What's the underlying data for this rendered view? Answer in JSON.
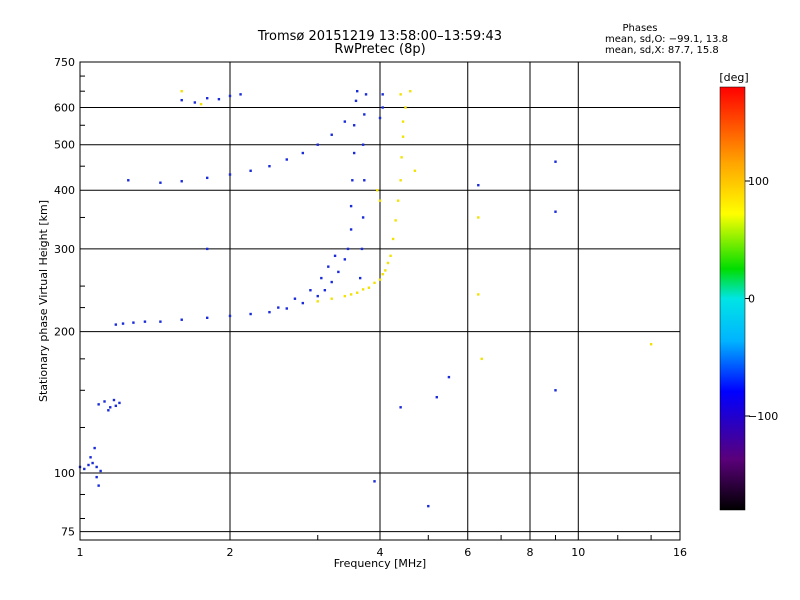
{
  "chart_data": {
    "type": "scatter",
    "title": "Tromsø 20151219 13:58:00–13:59:43",
    "subtitle": "RwPretec (8p)",
    "xlabel": "Frequency [MHz]",
    "ylabel": "Stationary phase Virtual Height [km]",
    "x_scale": "log",
    "y_scale": "log",
    "xlim": [
      1,
      16
    ],
    "ylim": [
      72,
      750
    ],
    "x_ticks": [
      1,
      2,
      4,
      6,
      8,
      10,
      16
    ],
    "x_tick_labels": [
      "1",
      "2",
      "4",
      "6",
      "8",
      "10",
      "16"
    ],
    "y_ticks": [
      75,
      100,
      200,
      300,
      400,
      500,
      600,
      750
    ],
    "y_tick_labels": [
      "75",
      "100",
      "200",
      "300",
      "400",
      "500",
      "600",
      "750"
    ],
    "grid": true,
    "phase_legend": {
      "title": "Phases",
      "line_o": "mean, sd,O: −99.1, 13.8",
      "line_x": "mean, sd,X:  87.7, 15.8"
    },
    "colorbar": {
      "label": "[deg]",
      "range": [
        -180,
        180
      ],
      "ticks": [
        100,
        0,
        -100
      ],
      "tick_labels": [
        "100",
        "0",
        "−100"
      ]
    },
    "series": [
      {
        "name": "O",
        "color": "#1a2bd9",
        "points": [
          [
            1.0,
            103
          ],
          [
            1.02,
            102
          ],
          [
            1.04,
            104
          ],
          [
            1.06,
            105
          ],
          [
            1.08,
            103
          ],
          [
            1.1,
            101
          ],
          [
            1.05,
            108
          ],
          [
            1.07,
            113
          ],
          [
            1.09,
            94
          ],
          [
            1.08,
            98
          ],
          [
            1.09,
            140
          ],
          [
            1.12,
            142
          ],
          [
            1.15,
            138
          ],
          [
            1.18,
            139
          ],
          [
            1.2,
            141
          ],
          [
            1.14,
            136
          ],
          [
            1.17,
            143
          ],
          [
            1.18,
            207
          ],
          [
            1.22,
            208
          ],
          [
            1.28,
            209
          ],
          [
            1.35,
            210
          ],
          [
            1.45,
            210
          ],
          [
            1.6,
            212
          ],
          [
            1.8,
            214
          ],
          [
            2.0,
            216
          ],
          [
            2.2,
            218
          ],
          [
            2.4,
            220
          ],
          [
            2.6,
            224
          ],
          [
            2.8,
            230
          ],
          [
            3.0,
            238
          ],
          [
            3.1,
            245
          ],
          [
            3.2,
            255
          ],
          [
            3.3,
            268
          ],
          [
            3.4,
            285
          ],
          [
            3.45,
            300
          ],
          [
            3.5,
            330
          ],
          [
            3.5,
            370
          ],
          [
            3.52,
            420
          ],
          [
            3.55,
            480
          ],
          [
            3.55,
            550
          ],
          [
            3.58,
            620
          ],
          [
            3.6,
            650
          ],
          [
            3.65,
            260
          ],
          [
            3.68,
            300
          ],
          [
            3.7,
            350
          ],
          [
            3.72,
            420
          ],
          [
            3.7,
            500
          ],
          [
            3.72,
            580
          ],
          [
            3.75,
            640
          ],
          [
            2.5,
            225
          ],
          [
            2.7,
            235
          ],
          [
            2.9,
            245
          ],
          [
            3.05,
            260
          ],
          [
            3.15,
            275
          ],
          [
            3.25,
            290
          ],
          [
            1.45,
            415
          ],
          [
            1.6,
            418
          ],
          [
            1.8,
            425
          ],
          [
            2.0,
            432
          ],
          [
            2.2,
            440
          ],
          [
            2.4,
            450
          ],
          [
            2.6,
            465
          ],
          [
            2.8,
            480
          ],
          [
            3.0,
            500
          ],
          [
            3.2,
            525
          ],
          [
            3.4,
            560
          ],
          [
            1.6,
            622
          ],
          [
            1.8,
            628
          ],
          [
            2.0,
            635
          ],
          [
            2.1,
            640
          ],
          [
            1.7,
            615
          ],
          [
            1.9,
            625
          ],
          [
            4.05,
            640
          ],
          [
            4.05,
            600
          ],
          [
            4.0,
            570
          ],
          [
            1.25,
            420
          ],
          [
            1.8,
            300
          ],
          [
            5.2,
            145
          ],
          [
            6.3,
            410
          ],
          [
            9.0,
            460
          ],
          [
            9.0,
            360
          ],
          [
            9.0,
            150
          ],
          [
            4.4,
            138
          ],
          [
            5.0,
            85
          ],
          [
            5.5,
            160
          ],
          [
            3.9,
            96
          ]
        ]
      },
      {
        "name": "X",
        "color": "#f2e200",
        "points": [
          [
            3.0,
            232
          ],
          [
            3.2,
            235
          ],
          [
            3.4,
            238
          ],
          [
            3.6,
            242
          ],
          [
            3.8,
            248
          ],
          [
            4.0,
            258
          ],
          [
            4.1,
            270
          ],
          [
            4.2,
            290
          ],
          [
            4.25,
            315
          ],
          [
            4.3,
            345
          ],
          [
            4.35,
            380
          ],
          [
            4.4,
            420
          ],
          [
            4.42,
            470
          ],
          [
            4.45,
            520
          ],
          [
            4.45,
            560
          ],
          [
            4.5,
            600
          ],
          [
            3.5,
            240
          ],
          [
            3.7,
            246
          ],
          [
            3.9,
            254
          ],
          [
            4.05,
            265
          ],
          [
            4.15,
            280
          ],
          [
            3.95,
            400
          ],
          [
            4.0,
            380
          ],
          [
            4.6,
            650
          ],
          [
            4.4,
            640
          ],
          [
            1.6,
            650
          ],
          [
            1.75,
            610
          ],
          [
            6.3,
            350
          ],
          [
            6.3,
            240
          ],
          [
            6.4,
            175
          ],
          [
            14.0,
            188
          ],
          [
            4.7,
            440
          ]
        ]
      }
    ]
  }
}
